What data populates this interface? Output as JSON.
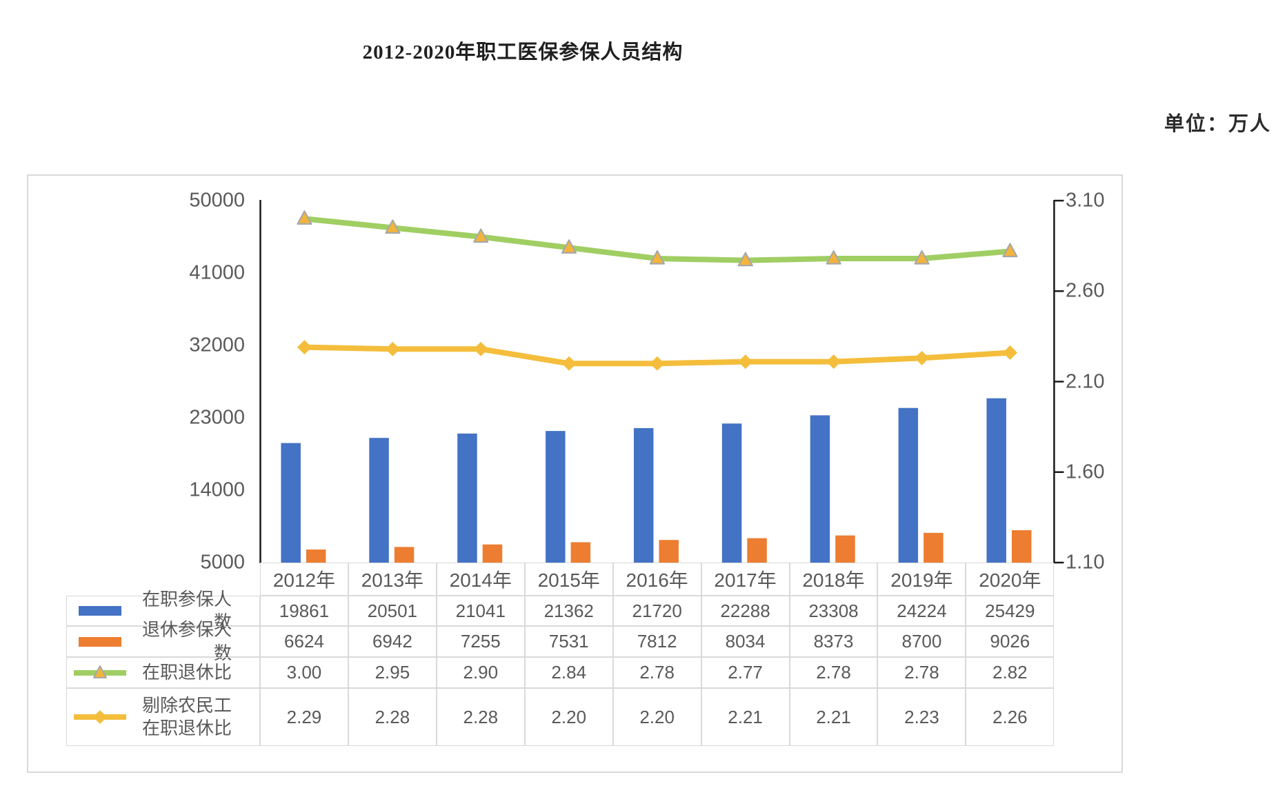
{
  "title": "2012-2020年职工医保参保人员结构",
  "unit_label": "单位：万人",
  "colors": {
    "bar_active": "#4472C4",
    "bar_retired": "#ED7D31",
    "line_ratio": "#A0CE63",
    "line_ratio_ex": "#F4BE3C",
    "marker_triangle_fill": "#F3B43B",
    "marker_triangle_border": "#A8A8A8",
    "axis_line": "#1a1a1a",
    "label_text": "#595959",
    "table_border": "#d9d9d9"
  },
  "chart_data": {
    "type": "combo-bar-line",
    "title": "2012-2020年职工医保参保人员结构",
    "unit": "单位：万人",
    "gridlines": false,
    "legend_position": "data-table-left",
    "categories": [
      "2012年",
      "2013年",
      "2014年",
      "2015年",
      "2016年",
      "2017年",
      "2018年",
      "2019年",
      "2020年"
    ],
    "left_axis": {
      "min": 5000,
      "max": 50000,
      "ticks": [
        "50000",
        "41000",
        "32000",
        "23000",
        "14000",
        "5000"
      ]
    },
    "right_axis": {
      "min": 1.1,
      "max": 3.1,
      "ticks": [
        "3.10",
        "2.60",
        "2.10",
        "1.60",
        "1.10"
      ]
    },
    "series": [
      {
        "name": "在职参保人数",
        "type": "bar",
        "axis": "left",
        "format": "int",
        "color": "#4472C4",
        "values": [
          19861,
          20501,
          21041,
          21362,
          21720,
          22288,
          23308,
          24224,
          25429
        ]
      },
      {
        "name": "退休参保人数",
        "type": "bar",
        "axis": "left",
        "format": "int",
        "color": "#ED7D31",
        "values": [
          6624,
          6942,
          7255,
          7531,
          7812,
          8034,
          8373,
          8700,
          9026
        ]
      },
      {
        "name": "在职退休比",
        "type": "line",
        "axis": "right",
        "format": "2dp",
        "color": "#A0CE63",
        "marker": "triangle",
        "marker_fill": "#F3B43B",
        "marker_border": "#A8A8A8",
        "values": [
          3.0,
          2.95,
          2.9,
          2.84,
          2.78,
          2.77,
          2.78,
          2.78,
          2.82
        ]
      },
      {
        "name": "剔除农民工在职退休比",
        "name_lines": [
          "剔除农民工",
          "在职退休比"
        ],
        "type": "line",
        "axis": "right",
        "format": "2dp",
        "color": "#F4BE3C",
        "marker": "diamond",
        "marker_fill": "#F4BE3C",
        "values": [
          2.29,
          2.28,
          2.28,
          2.2,
          2.2,
          2.21,
          2.21,
          2.23,
          2.26
        ]
      }
    ]
  }
}
